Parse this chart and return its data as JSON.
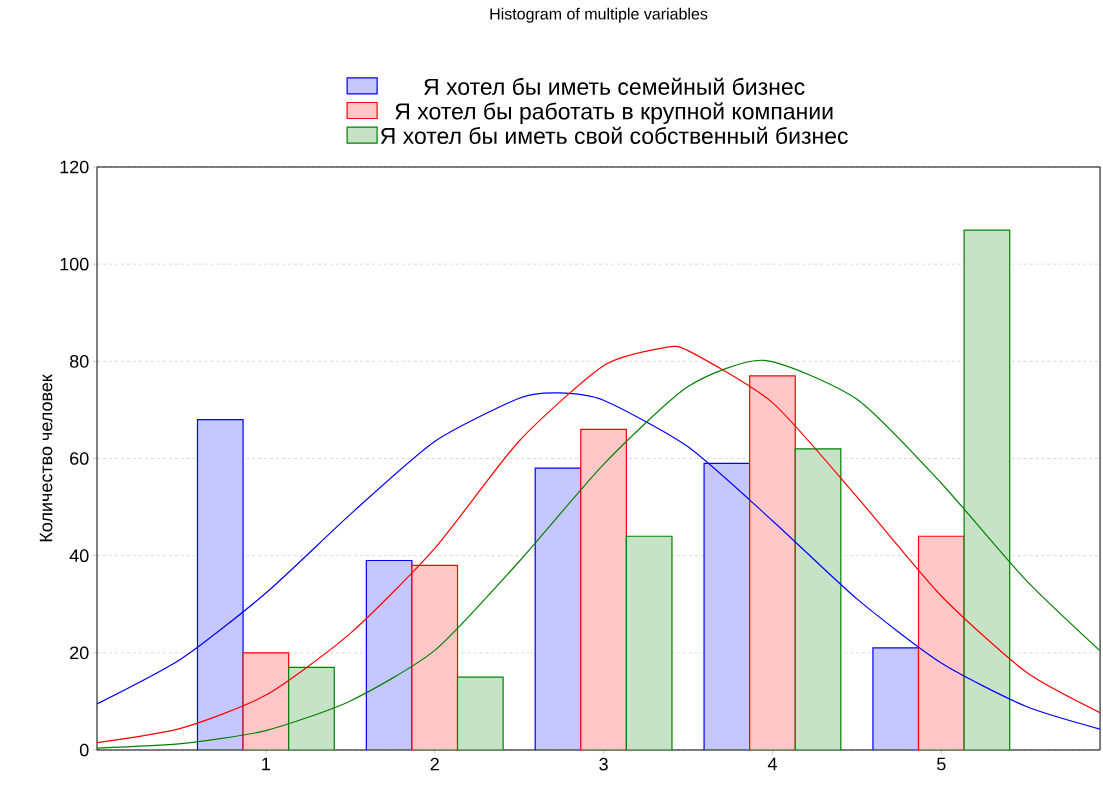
{
  "chart_data": {
    "type": "bar",
    "title": "Histogram of multiple variables",
    "ylabel": "Количество человек",
    "x": [
      1,
      2,
      3,
      4,
      5
    ],
    "series": [
      {
        "name": "Я хотел бы иметь семейный бизнес",
        "color": "#c7c7ff",
        "values": [
          68,
          39,
          58,
          59,
          21
        ]
      },
      {
        "name": "Я хотел бы работать в крупной компании",
        "color": "#ffc7c7",
        "values": [
          20,
          38,
          66,
          77,
          44
        ]
      },
      {
        "name": "Я хотел бы иметь свой собственный бизнес",
        "color": "#c7e3c7",
        "values": [
          17,
          15,
          44,
          62,
          107
        ]
      },
      {
        "type": "line",
        "color": "#0000ff",
        "x": [
          0,
          0.5,
          1,
          1.5,
          2,
          2.5,
          2.73,
          3,
          3.5,
          4,
          4.5,
          5,
          5.5,
          5.94
        ],
        "values": [
          9.5,
          18.8,
          32.3,
          48.5,
          63.5,
          72.4,
          73.5,
          72.0,
          62.4,
          47.2,
          31.1,
          17.9,
          9.0,
          4.3
        ]
      },
      {
        "type": "line",
        "color": "#ff0000",
        "x": [
          0,
          0.5,
          1,
          1.5,
          2,
          2.5,
          3,
          3.36,
          3.5,
          4,
          4.5,
          5,
          5.5,
          5.94
        ],
        "values": [
          1.5,
          4.5,
          11.3,
          24.0,
          41.5,
          63.6,
          79.1,
          82.8,
          82.2,
          71.5,
          52.1,
          31.7,
          16.1,
          7.7
        ]
      },
      {
        "type": "line",
        "color": "#008000",
        "x": [
          0,
          0.5,
          1,
          1.5,
          2,
          2.5,
          3,
          3.5,
          3.95,
          4.5,
          5,
          5.5,
          5.94
        ],
        "values": [
          0.4,
          1.3,
          4.0,
          10.1,
          20.5,
          38.8,
          58.8,
          74.8,
          80.2,
          72.2,
          54.9,
          35.0,
          20.4
        ]
      }
    ],
    "xlim": [
      0,
      5.94
    ],
    "ylim": [
      0,
      120
    ],
    "xticks": [
      1,
      2,
      3,
      4,
      5
    ],
    "yticks": [
      0,
      20,
      40,
      60,
      80,
      100,
      120
    ],
    "grid": "y",
    "legend": "top"
  }
}
